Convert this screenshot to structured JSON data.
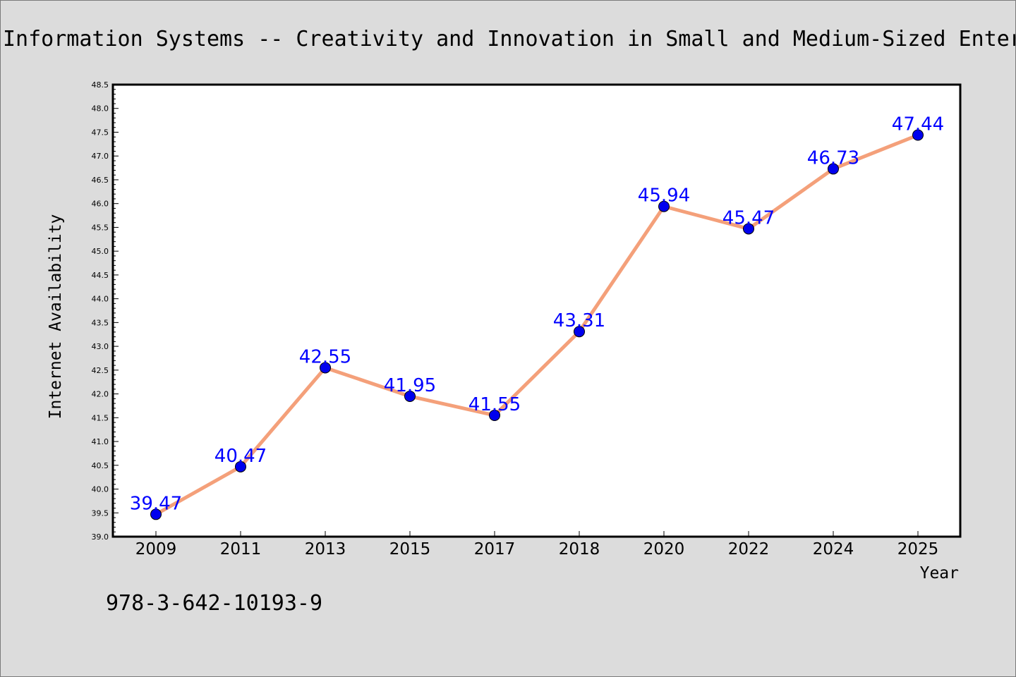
{
  "chart_data": {
    "type": "line",
    "title": "Information Systems -- Creativity and Innovation in Small and Medium-Sized Enter",
    "xlabel": "Year",
    "ylabel": "Internet Availability",
    "annotation": "978-3-642-10193-9",
    "categories": [
      "2009",
      "2011",
      "2013",
      "2015",
      "2017",
      "2018",
      "2020",
      "2022",
      "2024",
      "2025"
    ],
    "series": [
      {
        "values": [
          39.47,
          40.47,
          42.55,
          41.95,
          41.55,
          43.31,
          45.94,
          45.47,
          46.73,
          47.44
        ],
        "data_labels": [
          "39.47",
          "40.47",
          "42.55",
          "41.95",
          "41.55",
          "43.31",
          "45.94",
          "45.47",
          "46.73",
          "47.44"
        ],
        "line_color": "#f4a07a",
        "marker_color": "#0000ee",
        "label_color": "#0000ff"
      }
    ],
    "ylim": [
      39.0,
      48.5
    ],
    "yticks": [
      "39.0",
      "39.5",
      "40.0",
      "40.5",
      "41.0",
      "41.5",
      "42.0",
      "42.5",
      "43.0",
      "43.5",
      "44.0",
      "44.5",
      "45.0",
      "45.5",
      "46.0",
      "46.5",
      "47.0",
      "47.5",
      "48.0",
      "48.5"
    ],
    "grid": false,
    "legend": "none",
    "background_color": "#dcdcdc",
    "plot_background_color": "#ffffff"
  }
}
